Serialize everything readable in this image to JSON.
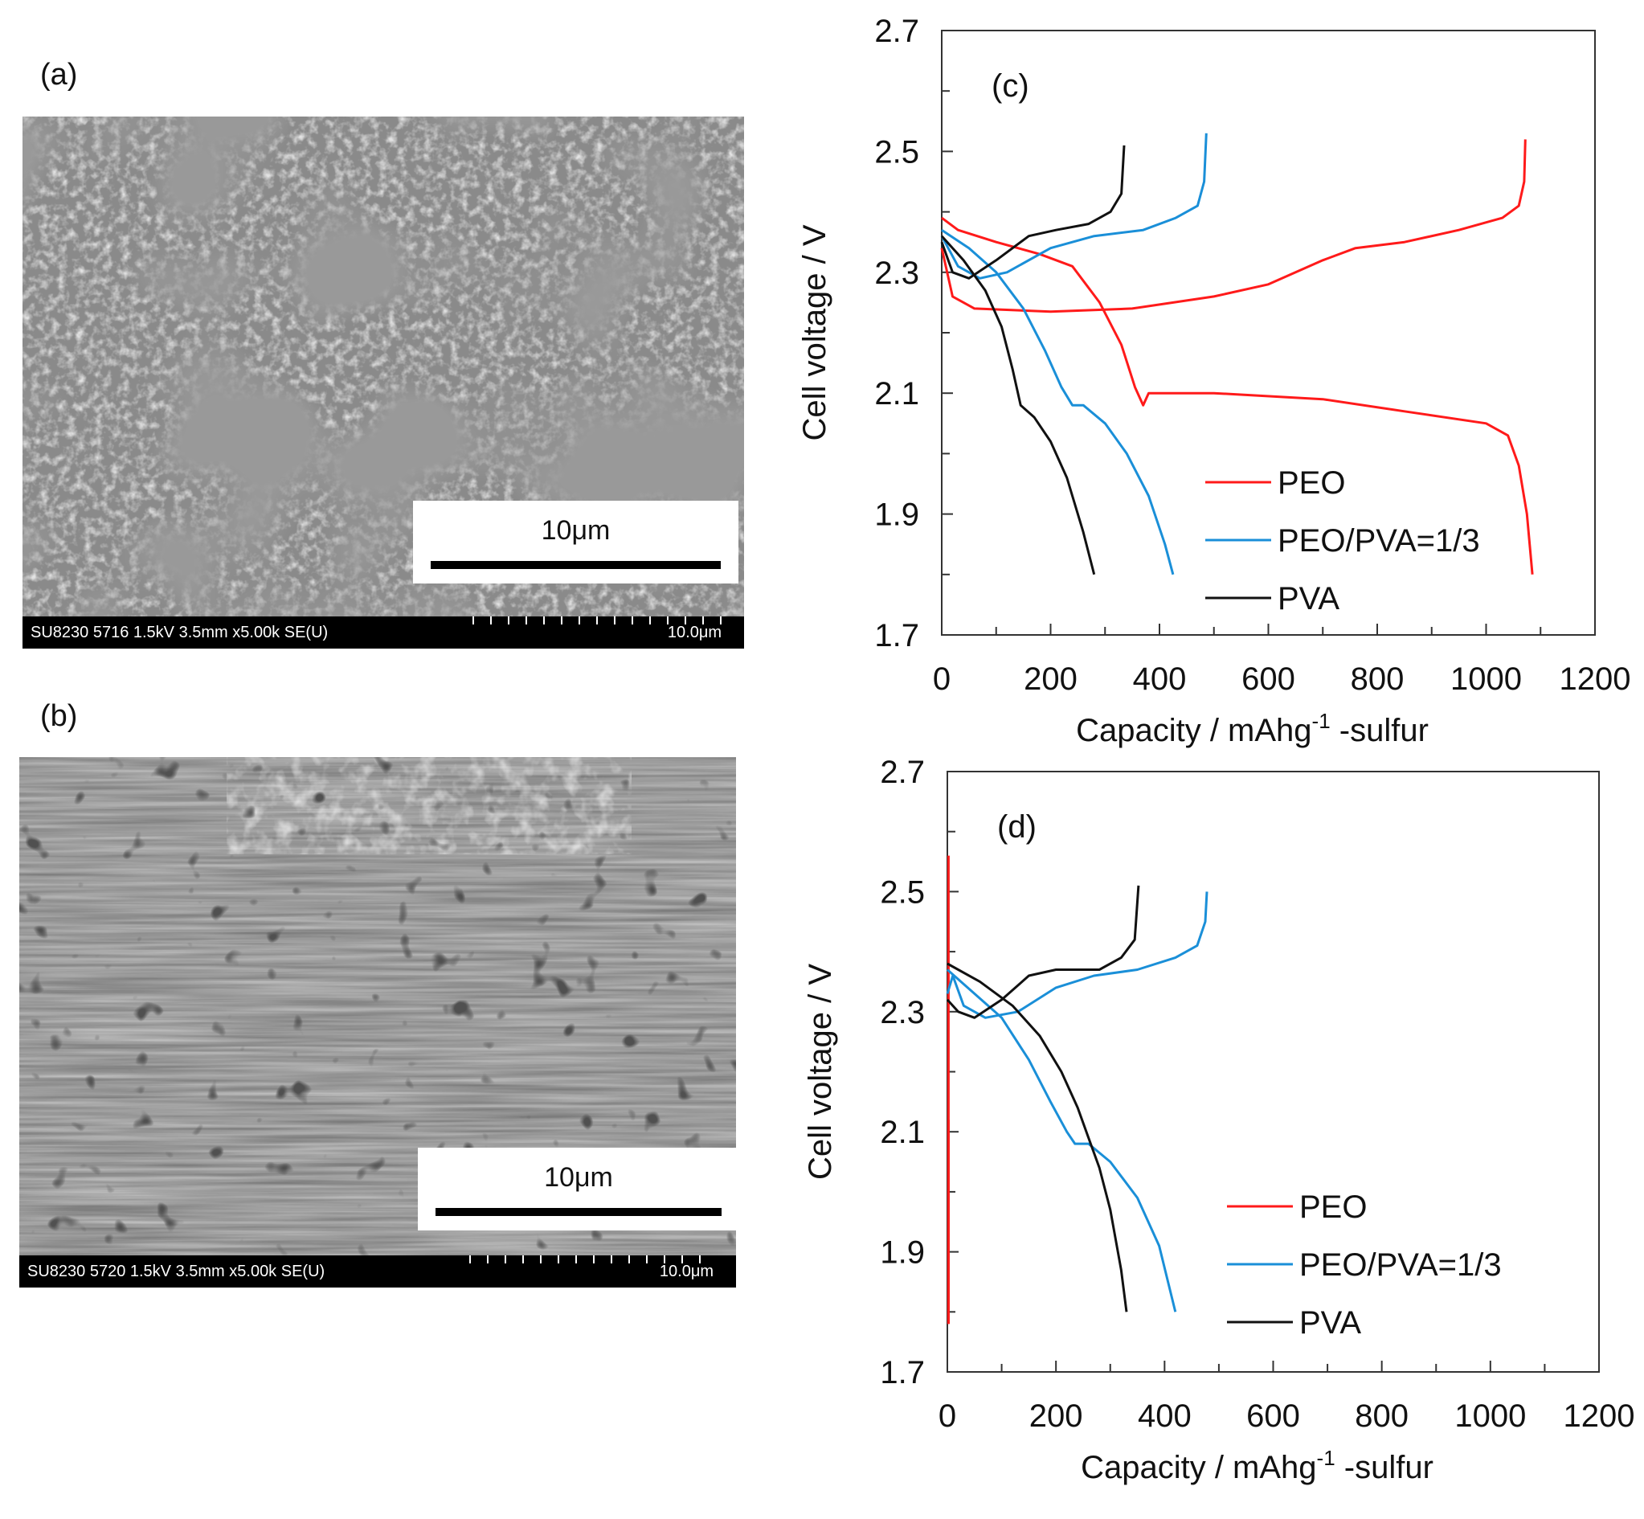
{
  "panels": {
    "a": {
      "label": "(a)",
      "scalebar_text": "10μm",
      "info_left": "SU8230 5716 1.5kV 3.5mm x5.00k SE(U)",
      "info_right": "10.0μm"
    },
    "b": {
      "label": "(b)",
      "scalebar_text": "10μm",
      "info_left": "SU8230 5720 1.5kV 3.5mm x5.00k SE(U)",
      "info_right": "10.0μm"
    }
  },
  "colors": {
    "PEO": "#ff1a1a",
    "PEO/PVA=1/3": "#1a8fd8",
    "PVA": "#111111"
  },
  "chart_data": [
    {
      "type": "line",
      "panel_label": "(c)",
      "xlabel": "Capacity / mAhg-1 -sulfur",
      "xlabel_main": "Capacity / mAhg",
      "xlabel_sup": "-1",
      "xlabel_tail": " -sulfur",
      "ylabel": "Cell voltage / V",
      "xlim": [
        0,
        1200
      ],
      "ylim": [
        1.7,
        2.7
      ],
      "xticks": [
        0,
        200,
        400,
        600,
        800,
        1000,
        1200
      ],
      "yticks": [
        1.7,
        1.9,
        2.1,
        2.3,
        2.5,
        2.7
      ],
      "legend_position": "lower-right",
      "grid": false,
      "series": [
        {
          "name": "PEO",
          "color": "#ff1a1a",
          "discharge": [
            [
              0,
              2.39
            ],
            [
              30,
              2.37
            ],
            [
              100,
              2.35
            ],
            [
              180,
              2.33
            ],
            [
              240,
              2.31
            ],
            [
              290,
              2.25
            ],
            [
              330,
              2.18
            ],
            [
              355,
              2.11
            ],
            [
              370,
              2.08
            ],
            [
              380,
              2.1
            ],
            [
              420,
              2.1
            ],
            [
              500,
              2.1
            ],
            [
              700,
              2.09
            ],
            [
              850,
              2.07
            ],
            [
              1000,
              2.05
            ],
            [
              1040,
              2.03
            ],
            [
              1060,
              1.98
            ],
            [
              1075,
              1.9
            ],
            [
              1085,
              1.8
            ]
          ],
          "charge": [
            [
              0,
              2.34
            ],
            [
              20,
              2.26
            ],
            [
              60,
              2.24
            ],
            [
              200,
              2.235
            ],
            [
              350,
              2.24
            ],
            [
              500,
              2.26
            ],
            [
              600,
              2.28
            ],
            [
              700,
              2.32
            ],
            [
              760,
              2.34
            ],
            [
              850,
              2.35
            ],
            [
              950,
              2.37
            ],
            [
              1030,
              2.39
            ],
            [
              1060,
              2.41
            ],
            [
              1070,
              2.45
            ],
            [
              1072,
              2.52
            ]
          ]
        },
        {
          "name": "PEO/PVA=1/3",
          "color": "#1a8fd8",
          "discharge": [
            [
              0,
              2.37
            ],
            [
              50,
              2.34
            ],
            [
              100,
              2.3
            ],
            [
              150,
              2.24
            ],
            [
              190,
              2.17
            ],
            [
              220,
              2.11
            ],
            [
              240,
              2.08
            ],
            [
              260,
              2.08
            ],
            [
              300,
              2.05
            ],
            [
              340,
              2.0
            ],
            [
              380,
              1.93
            ],
            [
              410,
              1.85
            ],
            [
              425,
              1.8
            ]
          ],
          "charge": [
            [
              0,
              2.36
            ],
            [
              30,
              2.31
            ],
            [
              70,
              2.29
            ],
            [
              120,
              2.3
            ],
            [
              200,
              2.34
            ],
            [
              280,
              2.36
            ],
            [
              370,
              2.37
            ],
            [
              430,
              2.39
            ],
            [
              470,
              2.41
            ],
            [
              482,
              2.45
            ],
            [
              486,
              2.53
            ]
          ]
        },
        {
          "name": "PVA",
          "color": "#111111",
          "discharge": [
            [
              0,
              2.36
            ],
            [
              40,
              2.32
            ],
            [
              80,
              2.27
            ],
            [
              110,
              2.21
            ],
            [
              130,
              2.14
            ],
            [
              145,
              2.08
            ],
            [
              170,
              2.06
            ],
            [
              200,
              2.02
            ],
            [
              230,
              1.96
            ],
            [
              260,
              1.87
            ],
            [
              280,
              1.8
            ]
          ],
          "charge": [
            [
              0,
              2.35
            ],
            [
              20,
              2.3
            ],
            [
              50,
              2.29
            ],
            [
              100,
              2.32
            ],
            [
              160,
              2.36
            ],
            [
              210,
              2.37
            ],
            [
              270,
              2.38
            ],
            [
              310,
              2.4
            ],
            [
              330,
              2.43
            ],
            [
              335,
              2.51
            ]
          ]
        }
      ]
    },
    {
      "type": "line",
      "panel_label": "(d)",
      "xlabel": "Capacity / mAhg-1 -sulfur",
      "xlabel_main": "Capacity / mAhg",
      "xlabel_sup": "-1",
      "xlabel_tail": " -sulfur",
      "ylabel": "Cell voltage / V",
      "xlim": [
        0,
        1200
      ],
      "ylim": [
        1.7,
        2.7
      ],
      "xticks": [
        0,
        200,
        400,
        600,
        800,
        1000,
        1200
      ],
      "yticks": [
        1.7,
        1.9,
        2.1,
        2.3,
        2.5,
        2.7
      ],
      "legend_position": "lower-right",
      "grid": false,
      "series": [
        {
          "name": "PEO",
          "color": "#ff1a1a",
          "discharge": [
            [
              2,
              2.12
            ],
            [
              2,
              1.78
            ]
          ],
          "charge": [
            [
              2,
              1.78
            ],
            [
              2,
              2.56
            ]
          ]
        },
        {
          "name": "PEO/PVA=1/3",
          "color": "#1a8fd8",
          "discharge": [
            [
              0,
              2.37
            ],
            [
              50,
              2.33
            ],
            [
              100,
              2.29
            ],
            [
              150,
              2.22
            ],
            [
              190,
              2.15
            ],
            [
              220,
              2.1
            ],
            [
              235,
              2.08
            ],
            [
              260,
              2.08
            ],
            [
              300,
              2.05
            ],
            [
              350,
              1.99
            ],
            [
              390,
              1.91
            ],
            [
              420,
              1.8
            ]
          ],
          "charge": [
            [
              0,
              2.33
            ],
            [
              10,
              2.36
            ],
            [
              30,
              2.31
            ],
            [
              70,
              2.29
            ],
            [
              130,
              2.3
            ],
            [
              200,
              2.34
            ],
            [
              270,
              2.36
            ],
            [
              350,
              2.37
            ],
            [
              420,
              2.39
            ],
            [
              460,
              2.41
            ],
            [
              475,
              2.45
            ],
            [
              478,
              2.5
            ]
          ]
        },
        {
          "name": "PVA",
          "color": "#111111",
          "discharge": [
            [
              0,
              2.38
            ],
            [
              60,
              2.35
            ],
            [
              120,
              2.31
            ],
            [
              170,
              2.26
            ],
            [
              210,
              2.2
            ],
            [
              240,
              2.14
            ],
            [
              260,
              2.09
            ],
            [
              280,
              2.04
            ],
            [
              300,
              1.97
            ],
            [
              320,
              1.87
            ],
            [
              330,
              1.8
            ]
          ],
          "charge": [
            [
              0,
              2.32
            ],
            [
              20,
              2.3
            ],
            [
              50,
              2.29
            ],
            [
              100,
              2.32
            ],
            [
              150,
              2.36
            ],
            [
              200,
              2.37
            ],
            [
              280,
              2.37
            ],
            [
              320,
              2.39
            ],
            [
              345,
              2.42
            ],
            [
              352,
              2.51
            ]
          ]
        }
      ]
    }
  ]
}
